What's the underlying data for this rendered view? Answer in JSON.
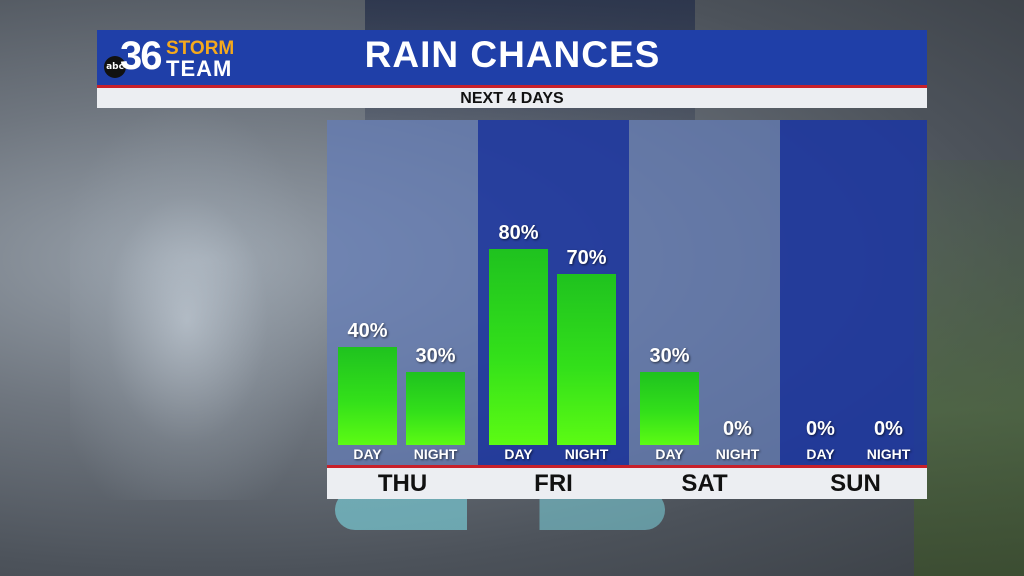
{
  "branding": {
    "network": "abc",
    "channel": "36",
    "storm": "STORM",
    "team": "TEAM"
  },
  "header": {
    "title": "RAIN CHANCES",
    "subtitle": "NEXT 4 DAYS"
  },
  "colors": {
    "header_blue": "#1f3fa8",
    "accent_red": "#c8202a",
    "bar_green": "#33e01a",
    "logo_orange": "#f5a91c"
  },
  "chart_data": {
    "type": "bar",
    "title": "RAIN CHANCES",
    "subtitle": "NEXT 4 DAYS",
    "categories": [
      "THU",
      "FRI",
      "SAT",
      "SUN"
    ],
    "periods": [
      "DAY",
      "NIGHT"
    ],
    "unit": "%",
    "ylim": [
      0,
      100
    ],
    "grid": false,
    "series": [
      {
        "name": "DAY",
        "values": [
          40,
          80,
          30,
          0
        ]
      },
      {
        "name": "NIGHT",
        "values": [
          30,
          70,
          0,
          0
        ]
      }
    ],
    "labels": [
      {
        "day": "THU",
        "day_text": "40%",
        "night_text": "30%"
      },
      {
        "day": "FRI",
        "day_text": "80%",
        "night_text": "70%"
      },
      {
        "day": "SAT",
        "day_text": "30%",
        "night_text": "0%"
      },
      {
        "day": "SUN",
        "day_text": "0%",
        "night_text": "0%"
      }
    ]
  }
}
